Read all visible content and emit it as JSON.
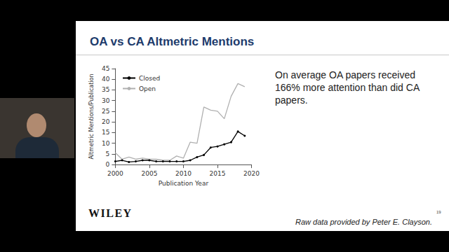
{
  "slide": {
    "title": "OA vs CA Altmetric Mentions",
    "text": "On average OA papers received 166% more attention than did CA papers.",
    "logo": "WILEY",
    "credit": "Raw data provided by Peter E. Clayson.",
    "page": "19"
  },
  "chart_data": {
    "type": "line",
    "x_label": "Publication Year",
    "y_label": "Altmetric Mentions/Publication",
    "x": [
      2000,
      2001,
      2002,
      2003,
      2004,
      2005,
      2006,
      2007,
      2008,
      2009,
      2010,
      2011,
      2012,
      2013,
      2014,
      2015,
      2016,
      2017,
      2018,
      2019
    ],
    "series": [
      {
        "name": "Closed",
        "color": "#000000",
        "marker": "circle",
        "values": [
          1.5,
          2,
          1.2,
          1.5,
          2,
          2,
          1.5,
          1.5,
          1.5,
          1.5,
          1.5,
          2,
          3.5,
          4.5,
          8,
          8.5,
          9.5,
          10.5,
          15.5,
          13.5
        ]
      },
      {
        "name": "Open",
        "color": "#b0b0b0",
        "marker": "none",
        "values": [
          5.5,
          2.5,
          3.5,
          2.5,
          3,
          2.5,
          2.5,
          2,
          2,
          4,
          3,
          10.5,
          10,
          27,
          25.5,
          25,
          21.5,
          32,
          38,
          36.5
        ]
      }
    ],
    "xlim": [
      2000,
      2020
    ],
    "xticks": [
      2000,
      2005,
      2010,
      2015,
      2020
    ],
    "ylim": [
      0,
      45
    ],
    "yticks": [
      0,
      5,
      10,
      15,
      20,
      25,
      30,
      35,
      40,
      45
    ],
    "grid": false,
    "legend": "upper left"
  }
}
